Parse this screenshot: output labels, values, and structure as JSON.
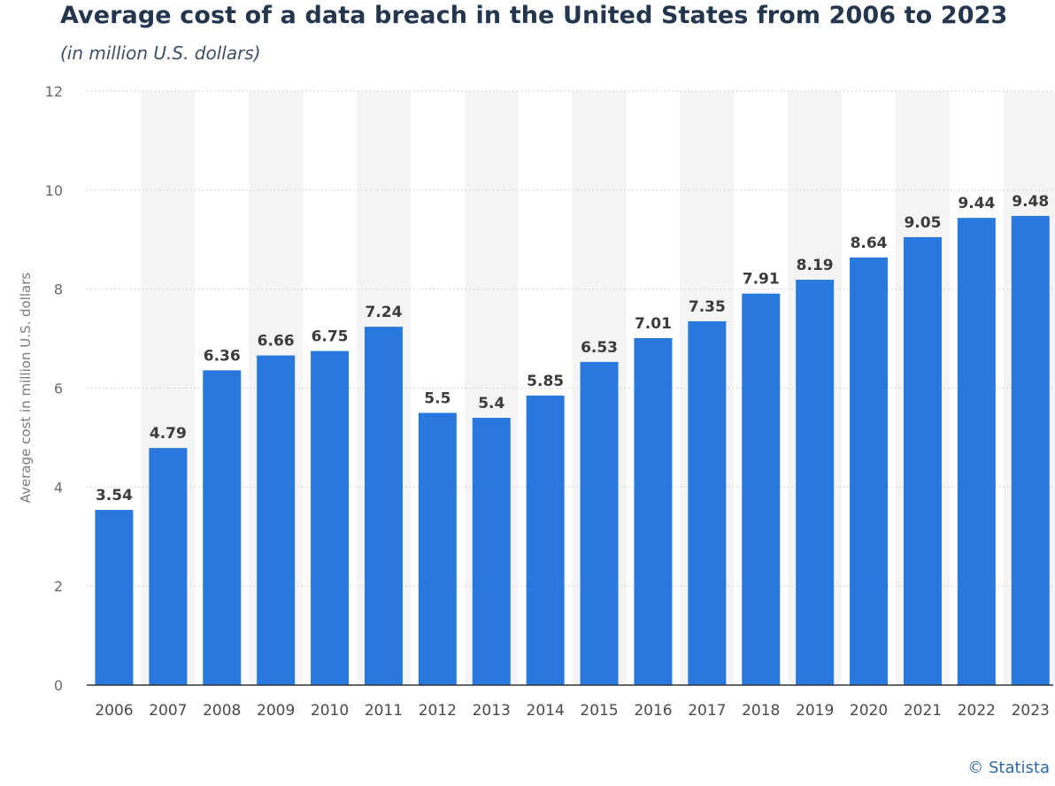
{
  "header": {
    "title": "Average cost of a data breach in the United States from 2006 to 2023",
    "subtitle": "(in million U.S. dollars)"
  },
  "footer": {
    "source": "© Statista"
  },
  "colors": {
    "bar": "#2878de",
    "band": "#f4f4f4",
    "grid": "#c9ced6",
    "axis": "#333333",
    "tick_text": "#4a4a4a",
    "label_text": "#3b3b3b"
  },
  "chart_data": {
    "type": "bar",
    "title": "Average cost of a data breach in the United States from 2006 to 2023",
    "subtitle": "(in million U.S. dollars)",
    "xlabel": "",
    "ylabel": "Average cost in million U.S. dollars",
    "ylim": [
      0,
      12
    ],
    "yticks": [
      0,
      2,
      4,
      6,
      8,
      10,
      12
    ],
    "grid": true,
    "legend": "none",
    "categories": [
      "2006",
      "2007",
      "2008",
      "2009",
      "2010",
      "2011",
      "2012",
      "2013",
      "2014",
      "2015",
      "2016",
      "2017",
      "2018",
      "2019",
      "2020",
      "2021",
      "2022",
      "2023"
    ],
    "values": [
      3.54,
      4.79,
      6.36,
      6.66,
      6.75,
      7.24,
      5.5,
      5.4,
      5.85,
      6.53,
      7.01,
      7.35,
      7.91,
      8.19,
      8.64,
      9.05,
      9.44,
      9.48
    ],
    "value_labels": [
      "3.54",
      "4.79",
      "6.36",
      "6.66",
      "6.75",
      "7.24",
      "5.5",
      "5.4",
      "5.85",
      "6.53",
      "7.01",
      "7.35",
      "7.91",
      "8.19",
      "8.64",
      "9.05",
      "9.44",
      "9.48"
    ]
  }
}
